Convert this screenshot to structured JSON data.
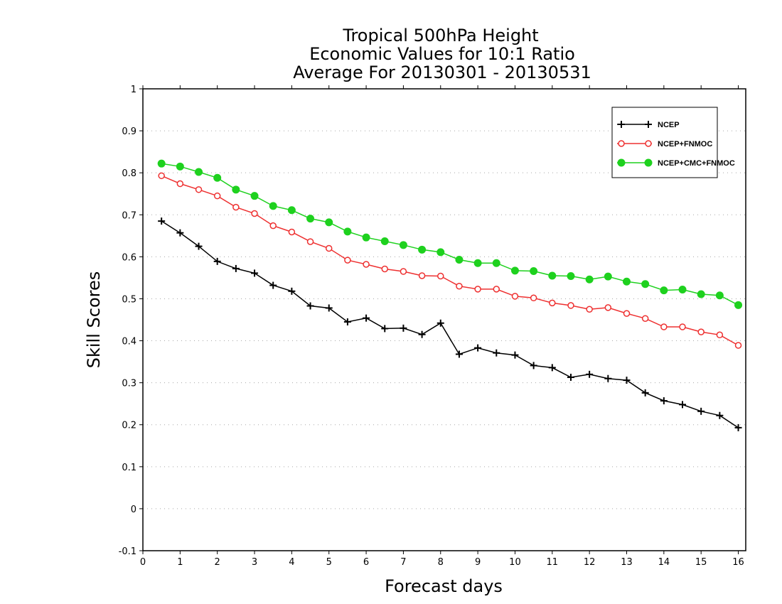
{
  "chart_data": {
    "type": "line",
    "title": [
      "Tropical 500hPa Height",
      "Economic Values for 10:1 Ratio",
      "Average For 20130301 - 20130531"
    ],
    "xlabel": "Forecast days",
    "ylabel": "Skill Scores",
    "xlim": [
      0,
      16.2
    ],
    "ylim": [
      -0.1,
      1
    ],
    "xticks": [
      0,
      1,
      2,
      3,
      4,
      5,
      6,
      7,
      8,
      9,
      10,
      11,
      12,
      13,
      14,
      15,
      16
    ],
    "yticks": [
      -0.1,
      0,
      0.1,
      0.2,
      0.3,
      0.4,
      0.5,
      0.6,
      0.7,
      0.8,
      0.9,
      1
    ],
    "ytick_labels": [
      "-0.1",
      "0",
      "0.1",
      "0.2",
      "0.3",
      "0.4",
      "0.5",
      "0.6",
      "0.7",
      "0.8",
      "0.9",
      "1"
    ],
    "grid": "horizontal dotted",
    "legend_position": "top-right",
    "x": [
      0.5,
      1,
      1.5,
      2,
      2.5,
      3,
      3.5,
      4,
      4.5,
      5,
      5.5,
      6,
      6.5,
      7,
      7.5,
      8,
      8.5,
      9,
      9.5,
      10,
      10.5,
      11,
      11.5,
      12,
      12.5,
      13,
      13.5,
      14,
      14.5,
      15,
      15.5,
      16
    ],
    "series": [
      {
        "name": "NCEP",
        "color": "#000000",
        "marker": "plus",
        "values": [
          0.685,
          0.657,
          0.625,
          0.589,
          0.572,
          0.561,
          0.532,
          0.518,
          0.483,
          0.478,
          0.445,
          0.454,
          0.429,
          0.43,
          0.415,
          0.442,
          0.368,
          0.383,
          0.371,
          0.366,
          0.341,
          0.336,
          0.313,
          0.32,
          0.31,
          0.306,
          0.276,
          0.257,
          0.248,
          0.232,
          0.222,
          0.193
        ]
      },
      {
        "name": "NCEP+FNMOC",
        "color": "#ee3030",
        "marker": "open-circle",
        "values": [
          0.793,
          0.774,
          0.76,
          0.745,
          0.718,
          0.703,
          0.674,
          0.659,
          0.636,
          0.62,
          0.592,
          0.582,
          0.571,
          0.565,
          0.555,
          0.554,
          0.53,
          0.523,
          0.523,
          0.506,
          0.502,
          0.49,
          0.484,
          0.475,
          0.479,
          0.465,
          0.453,
          0.433,
          0.433,
          0.421,
          0.414,
          0.389
        ]
      },
      {
        "name": "NCEP+CMC+FNMOC",
        "color": "#1ed11e",
        "marker": "filled-circle",
        "values": [
          0.822,
          0.815,
          0.802,
          0.788,
          0.76,
          0.745,
          0.721,
          0.711,
          0.691,
          0.682,
          0.66,
          0.646,
          0.637,
          0.628,
          0.617,
          0.611,
          0.593,
          0.585,
          0.585,
          0.567,
          0.566,
          0.555,
          0.554,
          0.546,
          0.553,
          0.541,
          0.535,
          0.52,
          0.522,
          0.511,
          0.508,
          0.485
        ]
      }
    ]
  }
}
